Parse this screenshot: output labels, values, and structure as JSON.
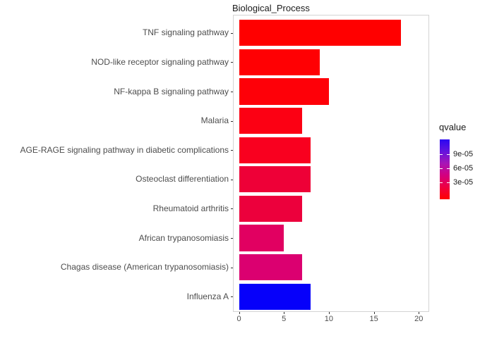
{
  "title": "Biological_Process",
  "chart_data": {
    "type": "bar",
    "orientation": "horizontal",
    "title": "Biological_Process",
    "xlabel": "",
    "ylabel": "",
    "xlim": [
      0,
      21.2
    ],
    "x_ticks": [
      0,
      5,
      10,
      15,
      20
    ],
    "grid": false,
    "categories": [
      "TNF signaling pathway",
      "NOD-like receptor signaling pathway",
      "NF-kappa B signaling pathway",
      "Malaria",
      "AGE-RAGE signaling pathway in diabetic complications",
      "Osteoclast differentiation",
      "Rheumatoid arthritis",
      "African trypanosomiasis",
      "Chagas disease (American trypanosomiasis)",
      "Influenza A"
    ],
    "values": [
      18,
      9,
      10,
      7,
      8,
      8,
      7,
      5,
      7,
      8
    ],
    "bar_colors": [
      "#FF0000",
      "#FF0003",
      "#FE0008",
      "#FC0013",
      "#F9001F",
      "#EE0037",
      "#EC003C",
      "#E10061",
      "#DB0070",
      "#0600FA"
    ],
    "legend": {
      "title": "qvalue",
      "position": "right",
      "type": "colorbar",
      "tick_labels": [
        "9e-05",
        "6e-05",
        "3e-05"
      ],
      "tick_fractions_from_top": [
        0.251,
        0.486,
        0.721
      ],
      "gradient_stops": [
        {
          "pos": 0.0,
          "color": "#FF0000"
        },
        {
          "pos": 0.2,
          "color": "#EE0040"
        },
        {
          "pos": 0.4,
          "color": "#D4007F"
        },
        {
          "pos": 0.6,
          "color": "#A816B6"
        },
        {
          "pos": 0.8,
          "color": "#6414DE"
        },
        {
          "pos": 1.0,
          "color": "#2B06F2"
        }
      ]
    }
  },
  "colors": {
    "background": "#ffffff",
    "panel_border": "#d4d4d4",
    "axis_text": "#4d4d4d",
    "tick": "#333333",
    "title_text": "#1a1a1a"
  }
}
